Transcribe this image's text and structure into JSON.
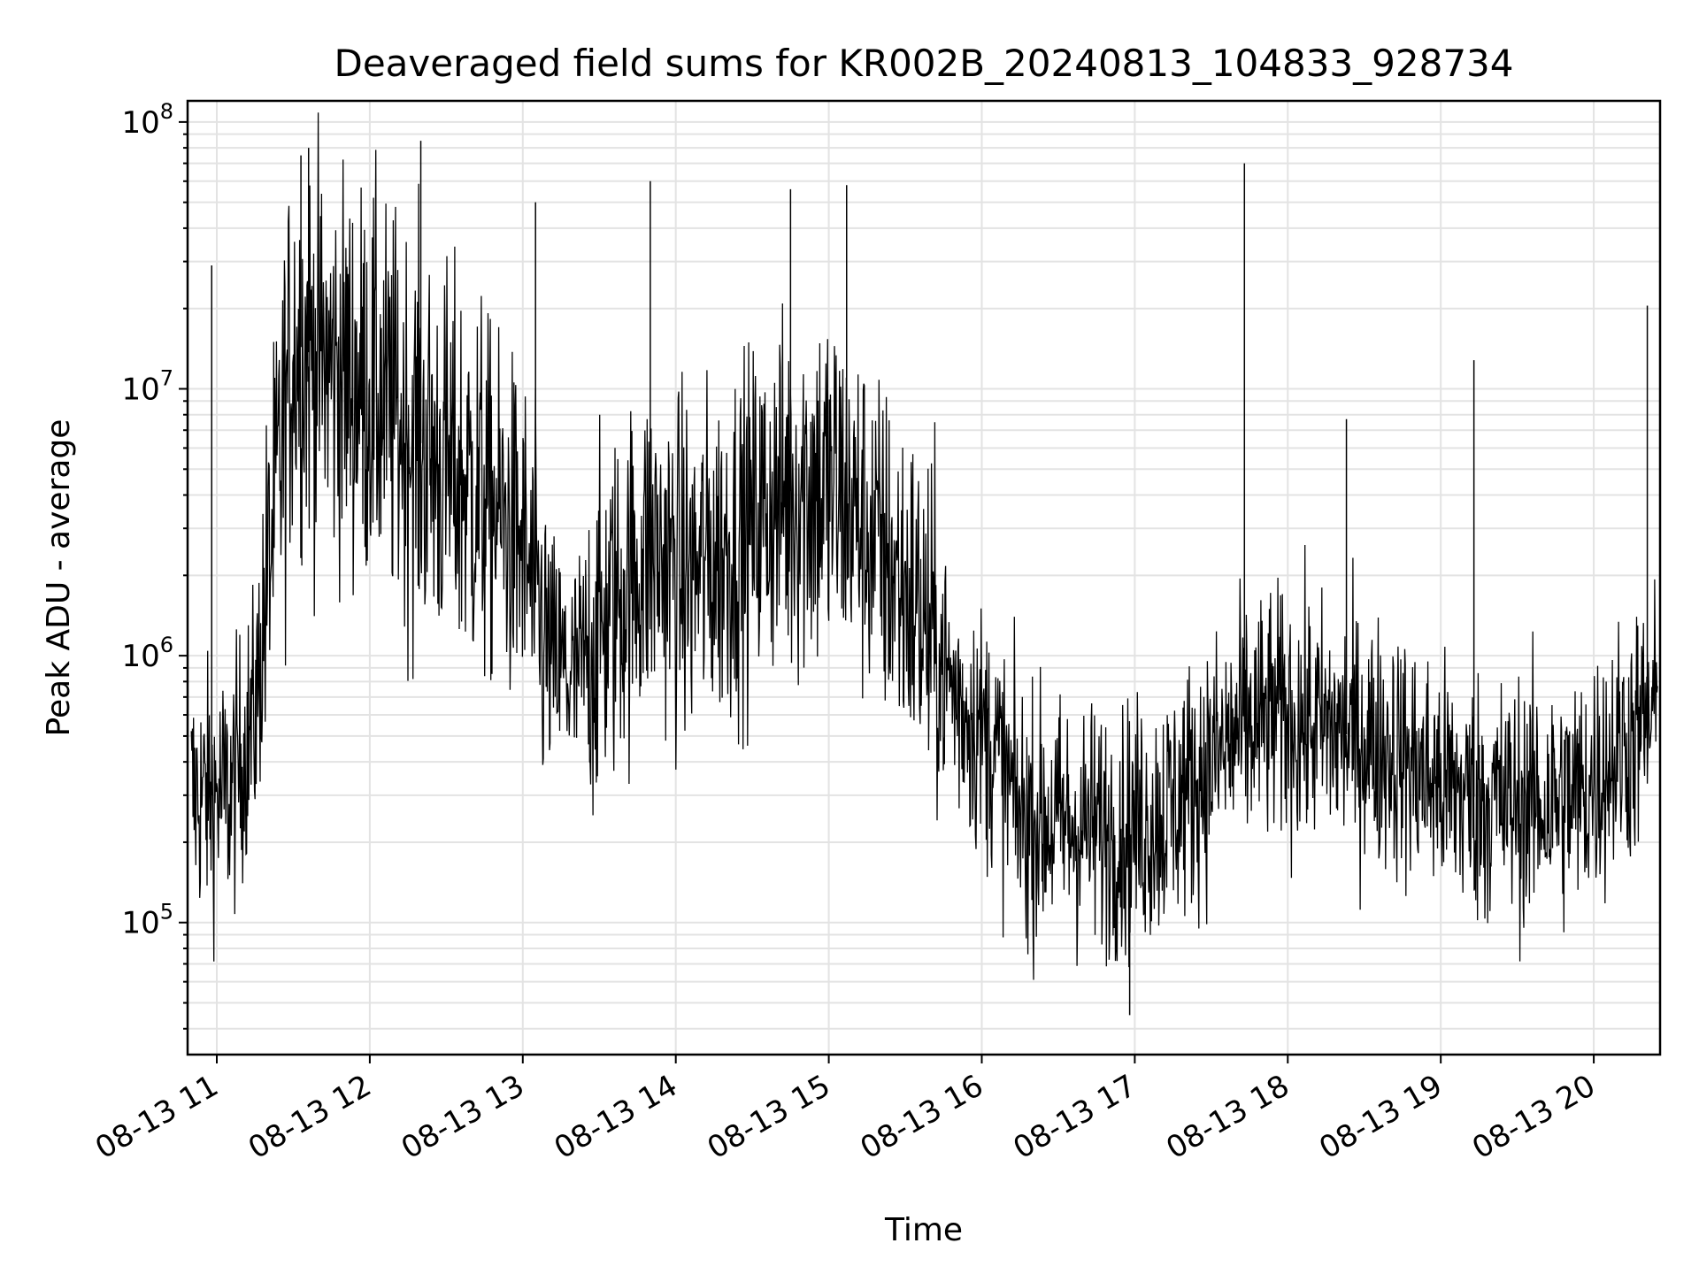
{
  "chart_data": {
    "type": "line",
    "title": "Deaveraged field sums for KR002B_20240813_104833_928734",
    "xlabel": "Time",
    "ylabel": "Peak ADU - average",
    "yscale": "log",
    "ylim": [
      32000,
      120000000
    ],
    "xlim": [
      "2024-08-13 10:48:33",
      "2024-08-13 20:26:00"
    ],
    "grid": true,
    "x_ticks": [
      {
        "value": "2024-08-13 11:00",
        "label": "08-13 11"
      },
      {
        "value": "2024-08-13 12:00",
        "label": "08-13 12"
      },
      {
        "value": "2024-08-13 13:00",
        "label": "08-13 13"
      },
      {
        "value": "2024-08-13 14:00",
        "label": "08-13 14"
      },
      {
        "value": "2024-08-13 15:00",
        "label": "08-13 15"
      },
      {
        "value": "2024-08-13 16:00",
        "label": "08-13 16"
      },
      {
        "value": "2024-08-13 17:00",
        "label": "08-13 17"
      },
      {
        "value": "2024-08-13 18:00",
        "label": "08-13 18"
      },
      {
        "value": "2024-08-13 19:00",
        "label": "08-13 19"
      },
      {
        "value": "2024-08-13 20:00",
        "label": "08-13 20"
      }
    ],
    "y_ticks": [
      {
        "value": 100000,
        "base": "10",
        "exp": "5"
      },
      {
        "value": 1000000,
        "base": "10",
        "exp": "6"
      },
      {
        "value": 10000000,
        "base": "10",
        "exp": "7"
      },
      {
        "value": 100000000,
        "base": "10",
        "exp": "8"
      }
    ],
    "series": [
      {
        "color": "#000000",
        "x": [
          "2024-08-13 10:50",
          "2024-08-13 11:05",
          "2024-08-13 11:15",
          "2024-08-13 11:20",
          "2024-08-13 11:30",
          "2024-08-13 11:45",
          "2024-08-13 12:00",
          "2024-08-13 12:15",
          "2024-08-13 12:30",
          "2024-08-13 12:45",
          "2024-08-13 13:00",
          "2024-08-13 13:10",
          "2024-08-13 13:20",
          "2024-08-13 13:35",
          "2024-08-13 13:50",
          "2024-08-13 14:05",
          "2024-08-13 14:20",
          "2024-08-13 14:35",
          "2024-08-13 14:50",
          "2024-08-13 15:05",
          "2024-08-13 15:20",
          "2024-08-13 15:35",
          "2024-08-13 15:50",
          "2024-08-13 16:05",
          "2024-08-13 16:15",
          "2024-08-13 16:35",
          "2024-08-13 16:55",
          "2024-08-13 17:10",
          "2024-08-13 17:25",
          "2024-08-13 17:40",
          "2024-08-13 17:55",
          "2024-08-13 18:10",
          "2024-08-13 18:25",
          "2024-08-13 18:40",
          "2024-08-13 18:55",
          "2024-08-13 19:10",
          "2024-08-13 19:25",
          "2024-08-13 19:40",
          "2024-08-13 19:55",
          "2024-08-13 20:10",
          "2024-08-13 20:25"
        ],
        "values": [
          300000,
          300000,
          600000,
          2000000,
          15000000,
          12000000,
          10000000,
          7000000,
          5000000,
          4000000,
          2500000,
          1000000,
          800000,
          1500000,
          2500000,
          2000000,
          2500000,
          3500000,
          4500000,
          4000000,
          2500000,
          1500000,
          700000,
          450000,
          250000,
          230000,
          220000,
          250000,
          350000,
          500000,
          600000,
          550000,
          500000,
          450000,
          350000,
          300000,
          280000,
          280000,
          300000,
          450000,
          600000
        ],
        "spikes": [
          {
            "x": "2024-08-13 10:58",
            "value": 29000000
          },
          {
            "x": "2024-08-13 11:33",
            "value": 75000000
          },
          {
            "x": "2024-08-13 11:36",
            "value": 80000000
          },
          {
            "x": "2024-08-13 12:20",
            "value": 85000000
          },
          {
            "x": "2024-08-13 13:05",
            "value": 50000000
          },
          {
            "x": "2024-08-13 13:50",
            "value": 60000000
          },
          {
            "x": "2024-08-13 14:45",
            "value": 56000000
          },
          {
            "x": "2024-08-13 15:07",
            "value": 58000000
          },
          {
            "x": "2024-08-13 16:58",
            "value": 45000
          },
          {
            "x": "2024-08-13 17:43",
            "value": 70000000
          },
          {
            "x": "2024-08-13 18:23",
            "value": 7700000
          },
          {
            "x": "2024-08-13 19:13",
            "value": 12800000
          },
          {
            "x": "2024-08-13 20:21",
            "value": 20500000
          }
        ]
      }
    ]
  }
}
